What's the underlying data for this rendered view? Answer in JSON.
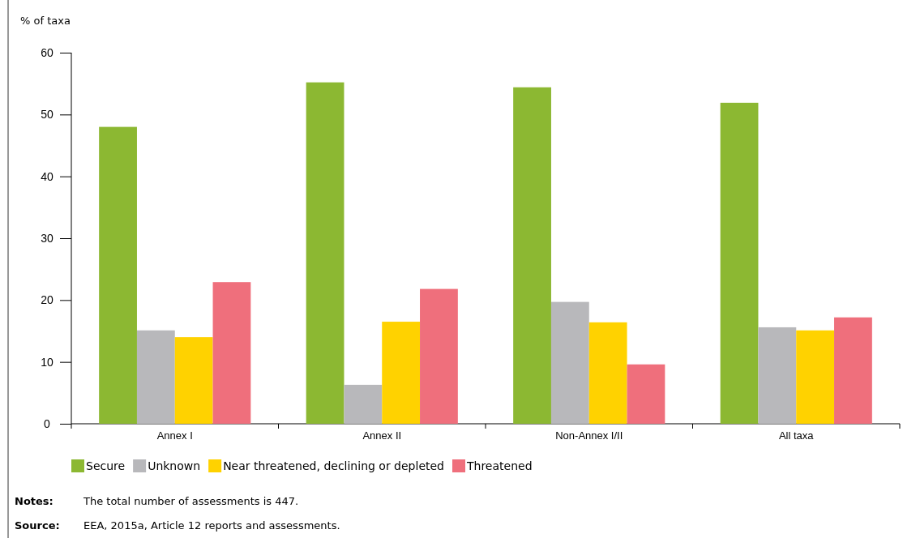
{
  "chart_data": {
    "type": "bar",
    "ylabel": "% of taxa",
    "categories": [
      "Annex I",
      "Annex II",
      "Non-Annex I/II",
      "All taxa"
    ],
    "series": [
      {
        "name": "Secure",
        "color": "#8cb832",
        "values": [
          48.0,
          55.2,
          54.4,
          51.9
        ]
      },
      {
        "name": "Unknown",
        "color": "#b8b8bb",
        "values": [
          15.1,
          6.3,
          19.7,
          15.6
        ]
      },
      {
        "name": "Near threatened, declining or depleted",
        "color": "#ffd200",
        "values": [
          14.0,
          16.5,
          16.4,
          15.1
        ]
      },
      {
        "name": "Threatened",
        "color": "#ef6f7c",
        "values": [
          22.9,
          21.8,
          9.6,
          17.2
        ]
      }
    ],
    "ylim": [
      0,
      60
    ],
    "yticks": [
      0,
      10,
      20,
      30,
      40,
      50,
      60
    ],
    "grid": false,
    "legend": "bottom",
    "annotations": [
      "Notes: The total number of assessments is 447.",
      "Source: EEA, 2015a, Article 12 reports and assessments."
    ]
  }
}
